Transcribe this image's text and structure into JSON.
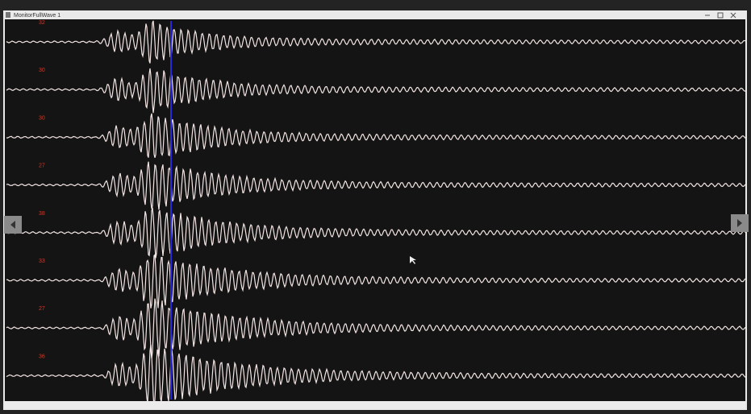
{
  "window": {
    "title": "MonitorFullWave 1"
  },
  "channels": [
    {
      "label": "32"
    },
    {
      "label": "30"
    },
    {
      "label": "30"
    },
    {
      "label": "27"
    },
    {
      "label": "38"
    },
    {
      "label": "33"
    },
    {
      "label": "27"
    },
    {
      "label": "36"
    }
  ]
}
